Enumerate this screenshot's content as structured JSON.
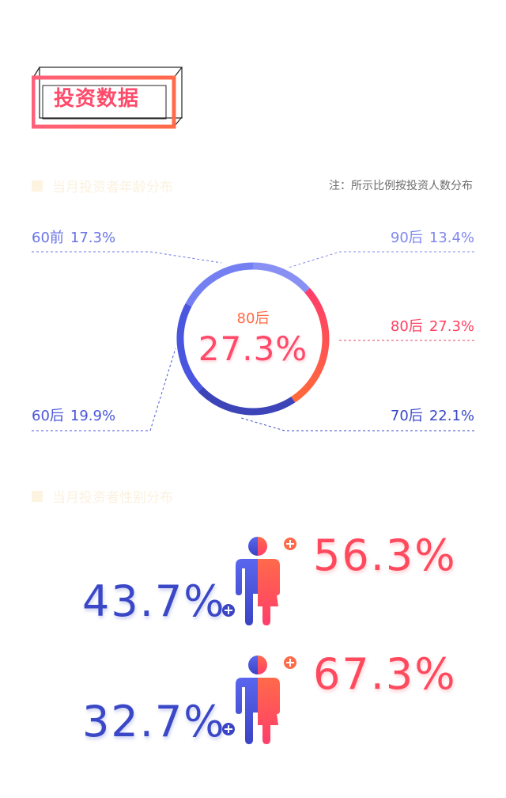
{
  "section_title": "投资数据",
  "age_section": {
    "heading": "当月投资者年龄分布",
    "note": "注：所示比例按投资人数分布",
    "center_label": "80后",
    "center_value": "27.3%",
    "labels": {
      "pre60": {
        "name": "60前",
        "value": "17.3%"
      },
      "post90": {
        "name": "90后",
        "value": "13.4%"
      },
      "post80": {
        "name": "80后",
        "value": "27.3%"
      },
      "post60": {
        "name": "60后",
        "value": "19.9%"
      },
      "post70": {
        "name": "70后",
        "value": "22.1%"
      }
    }
  },
  "gender_section": {
    "heading": "当月投资者性别分布",
    "rows": [
      {
        "male": "43.7%",
        "female": "56.3%"
      },
      {
        "male": "32.7%",
        "female": "67.3%"
      }
    ]
  },
  "colors": {
    "accent_red": "#ff4a6a",
    "accent_orange": "#ff6a45",
    "blue": "#3a48c8",
    "light_blue": "#7b86ee",
    "pink_dashed": "#e0476a"
  },
  "chart_data": [
    {
      "type": "pie",
      "title": "",
      "categories": [
        "90后",
        "80后",
        "70后",
        "60后",
        "60前"
      ],
      "values": [
        13.4,
        27.3,
        22.1,
        19.9,
        17.3
      ],
      "colors": [
        "#8890f4",
        "#ff5a55",
        "#3c44b8",
        "#4a55e0",
        "#7480f2"
      ],
      "donut": true,
      "unit": "%"
    },
    {
      "type": "bar",
      "title": "",
      "categories": [
        "男",
        "女"
      ],
      "series": [
        {
          "values": [
            43.7,
            56.3
          ]
        },
        {
          "values": [
            32.7,
            67.3
          ]
        }
      ],
      "unit": "%"
    }
  ]
}
